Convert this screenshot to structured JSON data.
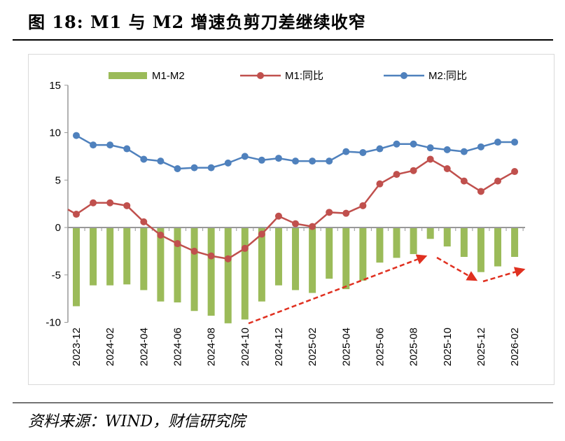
{
  "title": "图 18:  M1 与 M2 增速负剪刀差继续收窄",
  "source": "资料来源：WIND，财信研究院",
  "chart_data": {
    "type": "bar+line",
    "categories": [
      "2023-12",
      "2024-01",
      "2024-02",
      "2024-03",
      "2024-04",
      "2024-05",
      "2024-06",
      "2024-07",
      "2024-08",
      "2024-09",
      "2024-10",
      "2024-11",
      "2024-12",
      "2025-01",
      "2025-02",
      "2025-03",
      "2025-04",
      "2025-05",
      "2025-06",
      "2025-07",
      "2025-08",
      "2025-09",
      "2025-10",
      "2025-11",
      "2025-12",
      "2026-01",
      "2026-02"
    ],
    "tick_labels": [
      "2023-12",
      "2024-02",
      "2024-04",
      "2024-06",
      "2024-08",
      "2024-10",
      "2024-12",
      "2025-02",
      "2025-04",
      "2025-06",
      "2025-08",
      "2025-10",
      "2025-12",
      "2026-02"
    ],
    "yticks": [
      15,
      10,
      5,
      0,
      -5,
      -10
    ],
    "ylim": [
      -10,
      15
    ],
    "legend_position": "top",
    "series": [
      {
        "name": "M1-M2",
        "type": "bar",
        "color": "#9bbb59",
        "values": [
          -8.3,
          -6.1,
          -6.1,
          -6.0,
          -6.6,
          -7.8,
          -7.9,
          -8.8,
          -9.3,
          -10.1,
          -9.7,
          -7.8,
          -6.1,
          -6.6,
          -6.9,
          -5.4,
          -6.5,
          -5.6,
          -3.7,
          -3.2,
          -2.8,
          -1.2,
          -2.0,
          -3.1,
          -4.7,
          -4.1,
          -3.1
        ]
      },
      {
        "name": "M1:同比",
        "type": "line",
        "color": "#c0504d",
        "values": [
          1.4,
          2.6,
          2.6,
          2.3,
          0.6,
          -0.8,
          -1.7,
          -2.5,
          -3.0,
          -3.3,
          -2.2,
          -0.7,
          1.2,
          0.4,
          0.1,
          1.6,
          1.5,
          2.3,
          4.6,
          5.6,
          6.0,
          7.2,
          6.2,
          4.9,
          3.8,
          4.9,
          5.9
        ]
      },
      {
        "name": "M2:同比",
        "type": "line",
        "color": "#4f81bd",
        "values": [
          9.7,
          8.7,
          8.7,
          8.3,
          7.2,
          7.0,
          6.2,
          6.3,
          6.3,
          6.8,
          7.5,
          7.1,
          7.3,
          7.0,
          7.0,
          7.0,
          8.0,
          7.9,
          8.3,
          8.8,
          8.8,
          8.4,
          8.2,
          8.0,
          8.5,
          9.0,
          9.0
        ]
      }
    ],
    "annotation_color": "#e03020"
  }
}
